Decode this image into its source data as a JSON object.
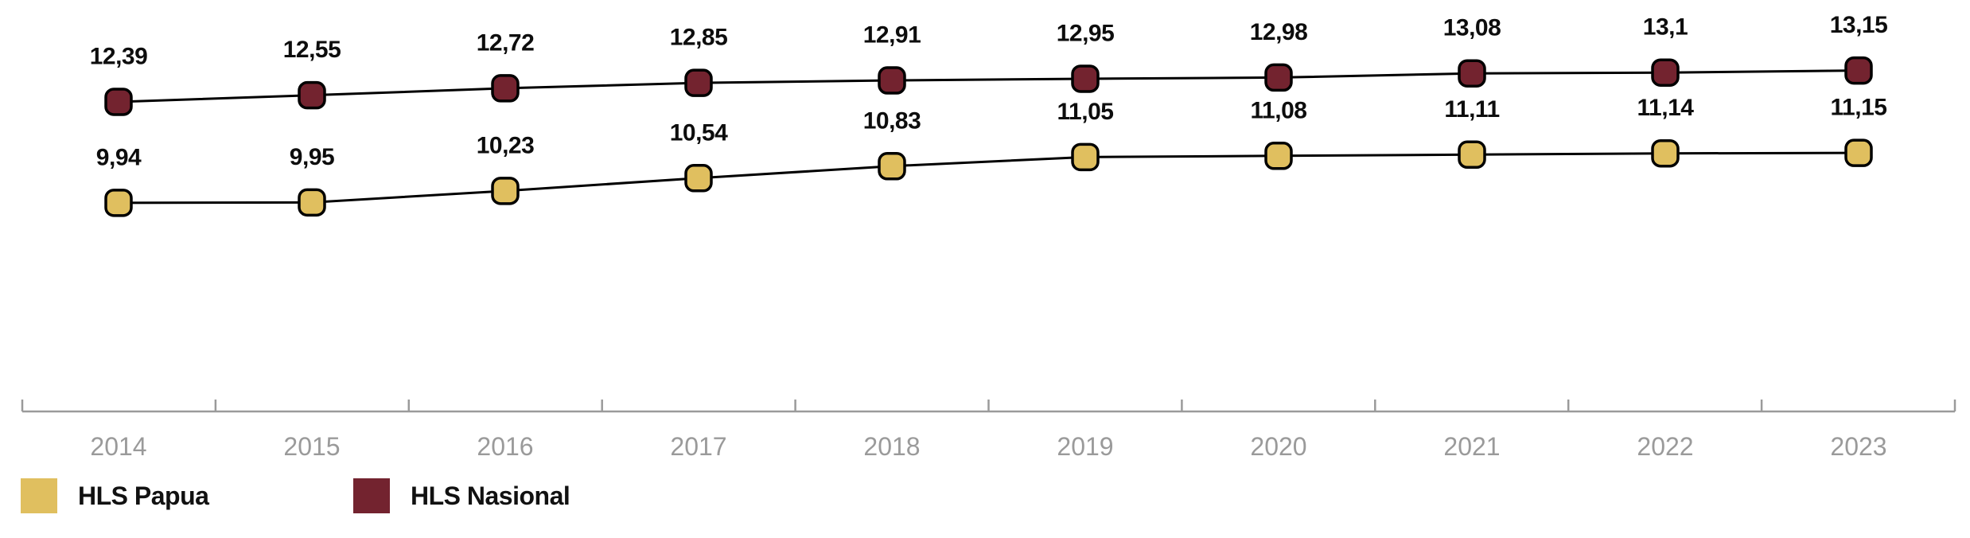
{
  "chart_data": {
    "type": "line",
    "title": "",
    "categories": [
      "2014",
      "2015",
      "2016",
      "2017",
      "2018",
      "2019",
      "2020",
      "2021",
      "2022",
      "2023"
    ],
    "series": [
      {
        "name": "HLS Papua",
        "color": "#E0BF5F",
        "marker_stroke": "#000000",
        "values": [
          9.94,
          9.95,
          10.23,
          10.54,
          10.83,
          11.05,
          11.08,
          11.11,
          11.14,
          11.15
        ],
        "labels": [
          "9,94",
          "9,95",
          "10,23",
          "10,54",
          "10,83",
          "11,05",
          "11,08",
          "11,11",
          "11,14",
          "11,15"
        ]
      },
      {
        "name": "HLS Nasional",
        "color": "#73232F",
        "marker_stroke": "#000000",
        "values": [
          12.39,
          12.55,
          12.72,
          12.85,
          12.91,
          12.95,
          12.98,
          13.08,
          13.1,
          13.15
        ],
        "labels": [
          "12,39",
          "12,55",
          "12,72",
          "12,85",
          "12,91",
          "12,95",
          "12,98",
          "13,08",
          "13,1",
          "13,15"
        ]
      }
    ],
    "xlabel": "",
    "ylabel": "",
    "decimal_separator": ",",
    "value_labels_shown": true,
    "y_axis_shown": false,
    "grid": false,
    "legend_position": "bottom-left",
    "axis_color": "#9a9a9a",
    "line_color": "#000000",
    "label_color": "#0d0d0d",
    "tick_label_color": "#9a9a9a"
  },
  "legend": {
    "items": [
      {
        "label": "HLS Papua",
        "color": "#E0BF5F"
      },
      {
        "label": "HLS Nasional",
        "color": "#73232F"
      }
    ]
  }
}
